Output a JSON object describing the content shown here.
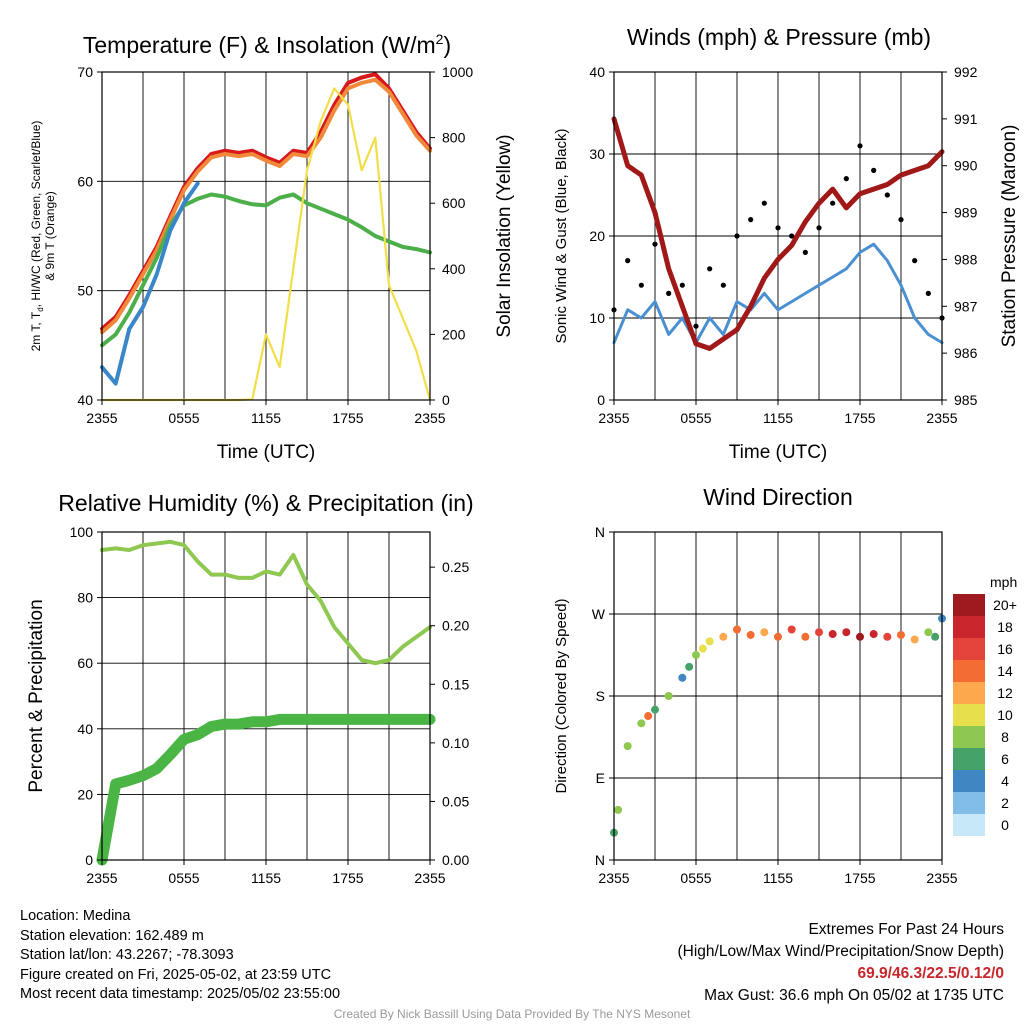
{
  "panels": {
    "temp": {
      "title_prefix": "Temperature (F) & Insolation (W/m",
      "title_sup": "2",
      "title_suffix": ")",
      "ylabel_line1_a": "2m T, T",
      "ylabel_line1_sub": "d",
      "ylabel_line1_b": ", HI/WC (Red, Green, Scarlet/Blue)",
      "ylabel_line2": "& 9m T (Orange)",
      "y2label": "Solar Insolation (Yellow)",
      "xlabel": "Time (UTC)"
    },
    "wind": {
      "title": "Winds (mph) & Pressure (mb)",
      "ylabel": "Sonic Wind & Gust (Blue, Black)",
      "y2label": "Station Pressure (Maroon)",
      "xlabel": "Time (UTC)"
    },
    "rh": {
      "title": "Relative Humidity (%) & Precipitation (in)",
      "ylabel": "Percent & Precipitation"
    },
    "dir": {
      "title": "Wind Direction",
      "ylabel": "Direction (Colored By Speed)",
      "legend_title": "mph"
    }
  },
  "chart_data": [
    {
      "type": "line",
      "title": "Temperature (F) & Insolation (W/m2)",
      "xlabel": "Time (UTC)",
      "ylabel": "2m T, Td, HI/WC (Red, Green, Scarlet/Blue) & 9m T (Orange)",
      "y2label": "Solar Insolation (Yellow)",
      "x_ticks": [
        "2355",
        "0555",
        "1155",
        "1755",
        "2355"
      ],
      "ylim": [
        40,
        70
      ],
      "y_ticks": [
        40,
        50,
        60,
        70
      ],
      "y2lim": [
        0,
        1000
      ],
      "y2_ticks": [
        0,
        200,
        400,
        600,
        800,
        1000
      ],
      "x_hours": [
        0,
        1,
        2,
        3,
        4,
        5,
        6,
        7,
        8,
        9,
        10,
        11,
        12,
        13,
        14,
        15,
        16,
        17,
        18,
        19,
        20,
        21,
        22,
        23,
        24
      ],
      "series": [
        {
          "name": "2m T",
          "color": "#d7191c",
          "axis": "left",
          "values": [
            46.5,
            47.6,
            49.6,
            51.8,
            54.0,
            56.8,
            59.5,
            61.2,
            62.5,
            62.8,
            62.6,
            62.8,
            62.2,
            61.7,
            62.8,
            62.6,
            64.5,
            67.0,
            69.0,
            69.5,
            69.8,
            68.5,
            66.5,
            64.5,
            63.0
          ]
        },
        {
          "name": "9m T",
          "color": "#f08a3a",
          "axis": "left",
          "values": [
            46.2,
            47.3,
            49.3,
            51.5,
            53.7,
            56.5,
            59.2,
            60.9,
            62.2,
            62.5,
            62.3,
            62.5,
            61.9,
            61.4,
            62.5,
            62.3,
            64.0,
            66.5,
            68.5,
            69.0,
            69.3,
            68.2,
            66.2,
            64.2,
            62.8
          ]
        },
        {
          "name": "Td",
          "color": "#4daf4a",
          "axis": "left",
          "values": [
            45.0,
            46.0,
            48.0,
            50.5,
            53.0,
            56.0,
            57.8,
            58.4,
            58.8,
            58.6,
            58.2,
            57.9,
            57.8,
            58.5,
            58.8,
            58.0,
            57.5,
            57.0,
            56.5,
            55.8,
            55.0,
            54.5,
            54.0,
            53.8,
            53.5
          ]
        },
        {
          "name": "HI/WC",
          "color": "#3a86c8",
          "axis": "left",
          "values": [
            43.0,
            41.5,
            46.5,
            48.5,
            51.5,
            55.5,
            58.0,
            59.8
          ]
        },
        {
          "name": "Solar Insolation",
          "color": "#f2de48",
          "axis": "right",
          "values": [
            0,
            0,
            0,
            0,
            0,
            0,
            0,
            0,
            0,
            0,
            0,
            2,
            200,
            100,
            400,
            700,
            850,
            950,
            900,
            700,
            800,
            350,
            250,
            150,
            0
          ]
        }
      ]
    },
    {
      "type": "line",
      "title": "Winds (mph) & Pressure (mb)",
      "xlabel": "Time (UTC)",
      "ylabel": "Sonic Wind & Gust (Blue, Black)",
      "y2label": "Station Pressure (Maroon)",
      "x_ticks": [
        "2355",
        "0555",
        "1155",
        "1755",
        "2355"
      ],
      "ylim": [
        0,
        40
      ],
      "y_ticks": [
        0,
        10,
        20,
        30,
        40
      ],
      "y2lim": [
        985,
        992
      ],
      "y2_ticks": [
        985,
        986,
        987,
        988,
        989,
        990,
        991,
        992
      ],
      "x_hours": [
        0,
        1,
        2,
        3,
        4,
        5,
        6,
        7,
        8,
        9,
        10,
        11,
        12,
        13,
        14,
        15,
        16,
        17,
        18,
        19,
        20,
        21,
        22,
        23,
        24
      ],
      "series": [
        {
          "name": "Sonic Wind",
          "color": "#4a90d0",
          "axis": "left",
          "values": [
            7,
            11,
            10,
            12,
            8,
            10,
            7,
            10,
            8,
            12,
            11,
            13,
            11,
            12,
            13,
            14,
            15,
            16,
            18,
            19,
            17,
            14,
            10,
            8,
            7
          ]
        },
        {
          "name": "Gust",
          "color": "#000000",
          "axis": "left",
          "style": "dots",
          "values": [
            11,
            17,
            14,
            19,
            13,
            14,
            9,
            16,
            14,
            20,
            22,
            24,
            21,
            20,
            18,
            21,
            24,
            27,
            31,
            28,
            25,
            22,
            17,
            13,
            10
          ]
        },
        {
          "name": "Station Pressure",
          "color": "#a01818",
          "axis": "right",
          "values": [
            991.0,
            990.0,
            989.8,
            989.0,
            987.8,
            987.0,
            986.2,
            986.1,
            986.3,
            986.5,
            987.0,
            987.6,
            988.0,
            988.3,
            988.8,
            989.2,
            989.5,
            989.1,
            989.4,
            989.5,
            989.6,
            989.8,
            989.9,
            990.0,
            990.3
          ]
        }
      ]
    },
    {
      "type": "line",
      "title": "Relative Humidity (%) & Precipitation (in)",
      "ylabel": "Percent & Precipitation",
      "x_ticks": [
        "2355",
        "0555",
        "1155",
        "1755",
        "2355"
      ],
      "ylim": [
        0,
        100
      ],
      "y_ticks": [
        0,
        20,
        40,
        60,
        80,
        100
      ],
      "y2lim": [
        0,
        0.28
      ],
      "y2_ticks": [
        "0.00",
        "0.05",
        "0.10",
        "0.15",
        "0.20",
        "0.25"
      ],
      "x_hours": [
        0,
        1,
        2,
        3,
        4,
        5,
        6,
        7,
        8,
        9,
        10,
        11,
        12,
        13,
        14,
        15,
        16,
        17,
        18,
        19,
        20,
        21,
        22,
        23,
        24
      ],
      "series": [
        {
          "name": "Relative Humidity",
          "color": "#8fc850",
          "axis": "left",
          "values": [
            94.5,
            95,
            94.5,
            96,
            96.5,
            97,
            96,
            91,
            87,
            87,
            86,
            86,
            88,
            87,
            93,
            84,
            79,
            71,
            66,
            61,
            60,
            61,
            65,
            68,
            71
          ]
        },
        {
          "name": "Precipitation",
          "color": "#4ab545",
          "axis": "right",
          "values": [
            0.0,
            0.065,
            0.068,
            0.072,
            0.078,
            0.09,
            0.103,
            0.107,
            0.114,
            0.116,
            0.116,
            0.118,
            0.118,
            0.12,
            0.12,
            0.12,
            0.12,
            0.12,
            0.12,
            0.12,
            0.12,
            0.12,
            0.12,
            0.12,
            0.12
          ]
        }
      ]
    },
    {
      "type": "scatter",
      "title": "Wind Direction",
      "ylabel": "Direction (Colored By Speed)",
      "x_ticks": [
        "2355",
        "0555",
        "1155",
        "1755",
        "2355"
      ],
      "y_ticks": [
        "N",
        "E",
        "S",
        "W",
        "N"
      ],
      "ylim": [
        0,
        360
      ],
      "legend_title": "mph",
      "legend_labels": [
        "20+",
        "18",
        "16",
        "14",
        "12",
        "10",
        "8",
        "6",
        "4",
        "2",
        "0"
      ],
      "legend_colors": [
        "#9e1a1f",
        "#c8252c",
        "#e4433a",
        "#f36c33",
        "#fba94c",
        "#e8df4d",
        "#8fc850",
        "#45a36a",
        "#3f86c2",
        "#82bde8",
        "#c7e8f8"
      ],
      "x_hours": [
        0,
        0.3,
        1,
        2,
        2.5,
        3,
        4,
        5,
        5.5,
        6,
        6.5,
        7,
        8,
        9,
        10,
        11,
        12,
        13,
        14,
        15,
        16,
        17,
        18,
        19,
        20,
        21,
        22,
        23,
        23.5,
        24
      ],
      "directions": [
        30,
        55,
        125,
        150,
        158,
        165,
        180,
        200,
        212,
        225,
        232,
        240,
        245,
        253,
        247,
        250,
        245,
        253,
        245,
        250,
        248,
        250,
        245,
        248,
        245,
        247,
        242,
        250,
        245,
        265
      ],
      "speeds": [
        7,
        8,
        8,
        8,
        14,
        7,
        8,
        5,
        7,
        9,
        10,
        11,
        12,
        15,
        14,
        12,
        15,
        16,
        14,
        17,
        18,
        19,
        20,
        18,
        17,
        15,
        12,
        9,
        6,
        4
      ]
    }
  ],
  "info": {
    "location": "Location: Medina",
    "elevation": "Station elevation: 162.489 m",
    "latlon": "Station lat/lon: 43.2267; -78.3093",
    "created": "Figure created on Fri, 2025-05-02, at 23:59 UTC",
    "recent": "Most recent data timestamp: 2025/05/02 23:55:00",
    "extremes_title": "Extremes For Past 24 Hours",
    "extremes_subtitle": "(High/Low/Max Wind/Precipitation/Snow Depth)",
    "extremes_values": "69.9/46.3/22.5/0.12/0",
    "max_gust": "Max Gust: 36.6 mph On 05/02 at 1735 UTC",
    "credit": "Created By Nick Bassill Using Data Provided By The NYS Mesonet"
  }
}
